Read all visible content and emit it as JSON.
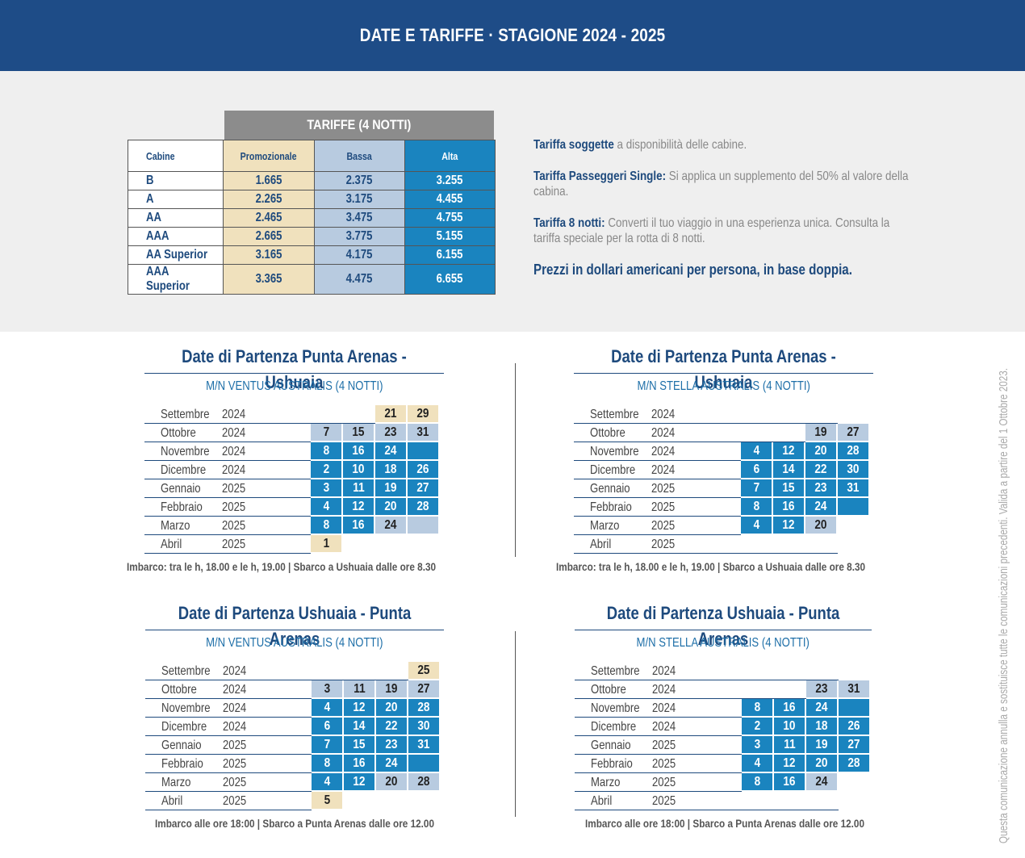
{
  "header": {
    "title": "DATE E TARIFFE · STAGIONE 2024 - 2025"
  },
  "tariff": {
    "title": "TARIFFE (4 NOTTI)",
    "col_cabine": "Cabine",
    "col_promo": "Promozionale",
    "col_bassa": "Bassa",
    "col_alta": "Alta",
    "rows": [
      {
        "cabin": "B",
        "promo": "1.665",
        "bassa": "2.375",
        "alta": "3.255"
      },
      {
        "cabin": "A",
        "promo": "2.265",
        "bassa": "3.175",
        "alta": "4.455"
      },
      {
        "cabin": "AA",
        "promo": "2.465",
        "bassa": "3.475",
        "alta": "4.755"
      },
      {
        "cabin": "AAA",
        "promo": "2.665",
        "bassa": "3.775",
        "alta": "5.155"
      },
      {
        "cabin": "AA Superior",
        "promo": "3.165",
        "bassa": "4.175",
        "alta": "6.155"
      },
      {
        "cabin": "AAA Superior",
        "promo": "3.365",
        "bassa": "4.475",
        "alta": "6.655"
      }
    ]
  },
  "notes": {
    "n1_bold": "Tariffa soggette",
    "n1_text": " a disponibilità delle cabine.",
    "n2_bold": "Tariffa Passeggeri Single:",
    "n2_text": " Si applica un supplemento del 50% al valore della cabina.",
    "n3_bold": "Tariffa 8 notti:",
    "n3_text": " Converti il tuo viaggio in una esperienza unica. Consulta la tariffa speciale per la rotta di 8 notti.",
    "n4_bold": "Prezzi in dollari americani per persona, in base doppia."
  },
  "calendars": [
    {
      "title": "Date di Partenza Punta Arenas - Ushuaia",
      "subtitle": "M/N VENTUS AUSTRALIS (4 NOTTI)",
      "footer": "Imbarco: tra le h, 18.00 e le h, 19.00 | Sbarco a Ushuaia dalle ore 8.30",
      "rows": [
        {
          "month": "Settembre",
          "year": "2024",
          "cells": [
            null,
            null,
            {
              "v": "21",
              "c": "beige"
            },
            {
              "v": "29",
              "c": "beige"
            }
          ]
        },
        {
          "month": "Ottobre",
          "year": "2024",
          "cells": [
            {
              "v": "7",
              "c": "light"
            },
            {
              "v": "15",
              "c": "light"
            },
            {
              "v": "23",
              "c": "light"
            },
            {
              "v": "31",
              "c": "light"
            }
          ]
        },
        {
          "month": "Novembre",
          "year": "2024",
          "cells": [
            {
              "v": "8",
              "c": "blue"
            },
            {
              "v": "16",
              "c": "blue"
            },
            {
              "v": "24",
              "c": "blue"
            },
            {
              "v": "",
              "c": "blue"
            }
          ]
        },
        {
          "month": "Dicembre",
          "year": "2024",
          "cells": [
            {
              "v": "2",
              "c": "blue"
            },
            {
              "v": "10",
              "c": "blue"
            },
            {
              "v": "18",
              "c": "blue"
            },
            {
              "v": "26",
              "c": "blue"
            }
          ]
        },
        {
          "month": "Gennaio",
          "year": "2025",
          "cells": [
            {
              "v": "3",
              "c": "blue"
            },
            {
              "v": "11",
              "c": "blue"
            },
            {
              "v": "19",
              "c": "blue"
            },
            {
              "v": "27",
              "c": "blue"
            }
          ]
        },
        {
          "month": "Febbraio",
          "year": "2025",
          "cells": [
            {
              "v": "4",
              "c": "blue"
            },
            {
              "v": "12",
              "c": "blue"
            },
            {
              "v": "20",
              "c": "blue"
            },
            {
              "v": "28",
              "c": "blue"
            }
          ]
        },
        {
          "month": "Marzo",
          "year": "2025",
          "cells": [
            {
              "v": "8",
              "c": "blue"
            },
            {
              "v": "16",
              "c": "blue"
            },
            {
              "v": "24",
              "c": "light"
            },
            {
              "v": "",
              "c": "light"
            }
          ]
        },
        {
          "month": "Abril",
          "year": "2025",
          "cells": [
            {
              "v": "1",
              "c": "beige"
            },
            null,
            null,
            null
          ]
        }
      ]
    },
    {
      "title": "Date di Partenza Punta Arenas - Ushuaia",
      "subtitle": "M/N STELLA AUSTRALIS (4 NOTTI)",
      "footer": "Imbarco: tra le h, 18.00 e le h, 19.00 | Sbarco a Ushuaia dalle ore 8.30",
      "rows": [
        {
          "month": "Settembre",
          "year": "2024",
          "cells": [
            null,
            null,
            null,
            null
          ]
        },
        {
          "month": "Ottobre",
          "year": "2024",
          "cells": [
            null,
            null,
            {
              "v": "19",
              "c": "light"
            },
            {
              "v": "27",
              "c": "light"
            }
          ]
        },
        {
          "month": "Novembre",
          "year": "2024",
          "cells": [
            {
              "v": "4",
              "c": "blue"
            },
            {
              "v": "12",
              "c": "blue"
            },
            {
              "v": "20",
              "c": "blue"
            },
            {
              "v": "28",
              "c": "blue"
            }
          ]
        },
        {
          "month": "Dicembre",
          "year": "2024",
          "cells": [
            {
              "v": "6",
              "c": "blue"
            },
            {
              "v": "14",
              "c": "blue"
            },
            {
              "v": "22",
              "c": "blue"
            },
            {
              "v": "30",
              "c": "blue"
            }
          ]
        },
        {
          "month": "Gennaio",
          "year": "2025",
          "cells": [
            {
              "v": "7",
              "c": "blue"
            },
            {
              "v": "15",
              "c": "blue"
            },
            {
              "v": "23",
              "c": "blue"
            },
            {
              "v": "31",
              "c": "blue"
            }
          ]
        },
        {
          "month": "Febbraio",
          "year": "2025",
          "cells": [
            {
              "v": "8",
              "c": "blue"
            },
            {
              "v": "16",
              "c": "blue"
            },
            {
              "v": "24",
              "c": "blue"
            },
            {
              "v": "",
              "c": "blue"
            }
          ]
        },
        {
          "month": "Marzo",
          "year": "2025",
          "cells": [
            {
              "v": "4",
              "c": "blue"
            },
            {
              "v": "12",
              "c": "blue"
            },
            {
              "v": "20",
              "c": "light"
            },
            null
          ]
        },
        {
          "month": "Abril",
          "year": "2025",
          "cells": [
            null,
            null,
            null,
            null
          ]
        }
      ]
    },
    {
      "title": "Date di Partenza Ushuaia - Punta Arenas",
      "subtitle": "M/N VENTUS AUSTRALIS (4 NOTTI)",
      "footer": "Imbarco alle ore 18:00 | Sbarco a Punta Arenas dalle ore 12.00",
      "rows": [
        {
          "month": "Settembre",
          "year": "2024",
          "cells": [
            null,
            null,
            null,
            {
              "v": "25",
              "c": "beige"
            }
          ]
        },
        {
          "month": "Ottobre",
          "year": "2024",
          "cells": [
            {
              "v": "3",
              "c": "light"
            },
            {
              "v": "11",
              "c": "light"
            },
            {
              "v": "19",
              "c": "light"
            },
            {
              "v": "27",
              "c": "light"
            }
          ]
        },
        {
          "month": "Novembre",
          "year": "2024",
          "cells": [
            {
              "v": "4",
              "c": "blue"
            },
            {
              "v": "12",
              "c": "blue"
            },
            {
              "v": "20",
              "c": "blue"
            },
            {
              "v": "28",
              "c": "blue"
            }
          ]
        },
        {
          "month": "Dicembre",
          "year": "2024",
          "cells": [
            {
              "v": "6",
              "c": "blue"
            },
            {
              "v": "14",
              "c": "blue"
            },
            {
              "v": "22",
              "c": "blue"
            },
            {
              "v": "30",
              "c": "blue"
            }
          ]
        },
        {
          "month": "Gennaio",
          "year": "2025",
          "cells": [
            {
              "v": "7",
              "c": "blue"
            },
            {
              "v": "15",
              "c": "blue"
            },
            {
              "v": "23",
              "c": "blue"
            },
            {
              "v": "31",
              "c": "blue"
            }
          ]
        },
        {
          "month": "Febbraio",
          "year": "2025",
          "cells": [
            {
              "v": "8",
              "c": "blue"
            },
            {
              "v": "16",
              "c": "blue"
            },
            {
              "v": "24",
              "c": "blue"
            },
            {
              "v": "",
              "c": "blue"
            }
          ]
        },
        {
          "month": "Marzo",
          "year": "2025",
          "cells": [
            {
              "v": "4",
              "c": "blue"
            },
            {
              "v": "12",
              "c": "blue"
            },
            {
              "v": "20",
              "c": "light"
            },
            {
              "v": "28",
              "c": "light"
            }
          ]
        },
        {
          "month": "Abril",
          "year": "2025",
          "cells": [
            {
              "v": "5",
              "c": "beige"
            },
            null,
            null,
            null
          ]
        }
      ]
    },
    {
      "title": "Date di Partenza Ushuaia - Punta Arenas",
      "subtitle": "M/N STELLA AUSTRALIS (4 NOTTI)",
      "footer": "Imbarco alle ore 18:00 | Sbarco a Punta Arenas dalle ore 12.00",
      "rows": [
        {
          "month": "Settembre",
          "year": "2024",
          "cells": [
            null,
            null,
            null,
            null
          ]
        },
        {
          "month": "Ottobre",
          "year": "2024",
          "cells": [
            null,
            null,
            {
              "v": "23",
              "c": "light"
            },
            {
              "v": "31",
              "c": "light"
            }
          ]
        },
        {
          "month": "Novembre",
          "year": "2024",
          "cells": [
            {
              "v": "8",
              "c": "blue"
            },
            {
              "v": "16",
              "c": "blue"
            },
            {
              "v": "24",
              "c": "blue"
            },
            {
              "v": "",
              "c": "blue"
            }
          ]
        },
        {
          "month": "Dicembre",
          "year": "2024",
          "cells": [
            {
              "v": "2",
              "c": "blue"
            },
            {
              "v": "10",
              "c": "blue"
            },
            {
              "v": "18",
              "c": "blue"
            },
            {
              "v": "26",
              "c": "blue"
            }
          ]
        },
        {
          "month": "Gennaio",
          "year": "2025",
          "cells": [
            {
              "v": "3",
              "c": "blue"
            },
            {
              "v": "11",
              "c": "blue"
            },
            {
              "v": "19",
              "c": "blue"
            },
            {
              "v": "27",
              "c": "blue"
            }
          ]
        },
        {
          "month": "Febbraio",
          "year": "2025",
          "cells": [
            {
              "v": "4",
              "c": "blue"
            },
            {
              "v": "12",
              "c": "blue"
            },
            {
              "v": "20",
              "c": "blue"
            },
            {
              "v": "28",
              "c": "blue"
            }
          ]
        },
        {
          "month": "Marzo",
          "year": "2025",
          "cells": [
            {
              "v": "8",
              "c": "blue"
            },
            {
              "v": "16",
              "c": "blue"
            },
            {
              "v": "24",
              "c": "light"
            },
            null
          ]
        },
        {
          "month": "Abril",
          "year": "2025",
          "cells": [
            null,
            null,
            null,
            null
          ]
        }
      ]
    }
  ],
  "side_note": "Questa comunicazione annulla e sostituisce tutte le comunicazioni precedenti. Valida a partire del 1 Ottobre 2023.",
  "colors": {
    "header_bg": "#1e4c87",
    "alta_blue": "#1a84bf",
    "bassa_light": "#b8cbe0",
    "promo_beige": "#f0e1bd"
  }
}
